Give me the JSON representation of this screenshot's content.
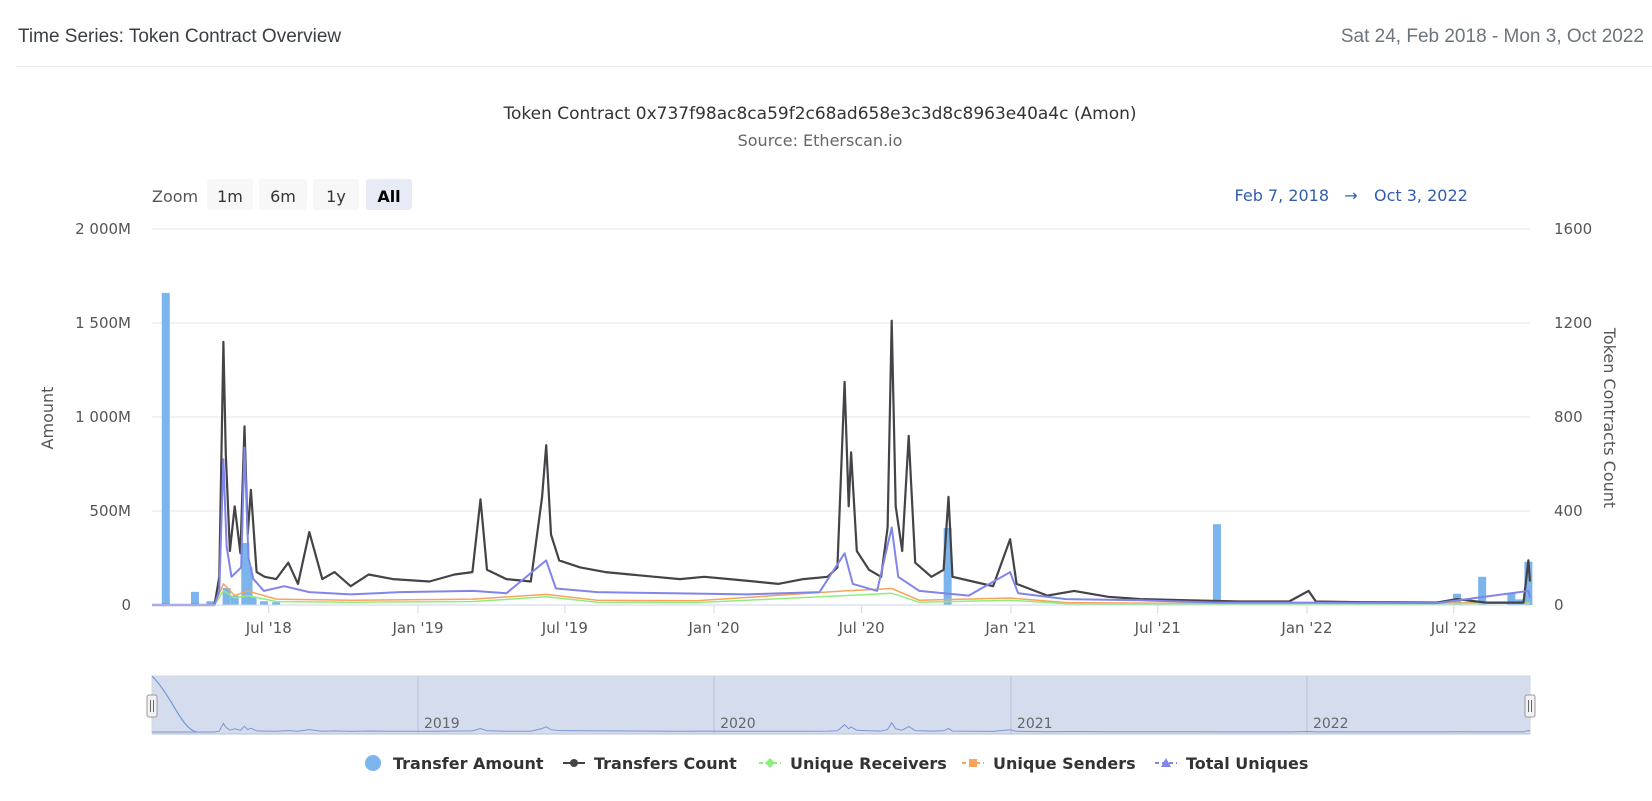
{
  "header": {
    "title": "Time Series: Token Contract Overview",
    "date_range": "Sat 24, Feb 2018 - Mon 3, Oct 2022"
  },
  "toolbar": {
    "zoom_label": "Zoom",
    "buttons": [
      "1m",
      "6m",
      "1y",
      "All"
    ],
    "selected": "All",
    "range_from": "Feb 7, 2018",
    "range_arrow": "→",
    "range_to": "Oct 3, 2022"
  },
  "navigator": {
    "labels": [
      "2019",
      "2020",
      "2021",
      "2022"
    ]
  },
  "colors": {
    "transfer_amount": "#7cb5ec",
    "transfers_count": "#434348",
    "unique_receivers": "#90ed7d",
    "unique_senders": "#f7a35c",
    "total_uniques": "#8085e9",
    "grid": "#e6e6e6",
    "navigator_fill": "#ccd6eb",
    "range_text": "#335cad"
  },
  "chart_data": {
    "type": "line",
    "title": "Token Contract 0x737f98ac8ca59f2c68ad658e3c3d8c8963e40a4c (Amon)",
    "subtitle": "Source: Etherscan.io",
    "xlabel": "",
    "x_range": [
      "2018-02-07",
      "2022-10-03"
    ],
    "x_ticks": [
      "Jul '18",
      "Jan '19",
      "Jul '19",
      "Jan '20",
      "Jul '20",
      "Jan '21",
      "Jul '21",
      "Jan '22",
      "Jul '22"
    ],
    "x_tick_dates": [
      "2018-07-01",
      "2019-01-01",
      "2019-07-01",
      "2020-01-01",
      "2020-07-01",
      "2021-01-01",
      "2021-07-01",
      "2022-01-01",
      "2022-07-01"
    ],
    "y_left": {
      "label": "Amount",
      "range": [
        0,
        2000000000
      ],
      "ticks": [
        "0",
        "500M",
        "1 000M",
        "1 500M",
        "2 000M"
      ]
    },
    "y_right": {
      "label": "Token Contracts Count",
      "range": [
        0,
        1600
      ],
      "ticks": [
        "0",
        "400",
        "800",
        "1200",
        "1600"
      ]
    },
    "grid": true,
    "legend_position": "bottom",
    "series": [
      {
        "name": "Transfer Amount",
        "type": "column",
        "axis": "left",
        "points": [
          [
            "2018-02-24",
            1660000000
          ],
          [
            "2018-04-01",
            70000000
          ],
          [
            "2018-04-20",
            20000000
          ],
          [
            "2018-05-10",
            90000000
          ],
          [
            "2018-05-20",
            50000000
          ],
          [
            "2018-06-02",
            330000000
          ],
          [
            "2018-06-06",
            200000000
          ],
          [
            "2018-06-11",
            40000000
          ],
          [
            "2018-06-25",
            20000000
          ],
          [
            "2018-07-10",
            15000000
          ],
          [
            "2020-10-15",
            410000000
          ],
          [
            "2021-09-12",
            430000000
          ],
          [
            "2022-07-05",
            60000000
          ],
          [
            "2022-08-05",
            150000000
          ],
          [
            "2022-09-10",
            60000000
          ],
          [
            "2022-09-20",
            30000000
          ],
          [
            "2022-10-01",
            230000000
          ]
        ]
      },
      {
        "name": "Transfers Count",
        "type": "line",
        "axis": "right",
        "points": [
          [
            "2018-02-07",
            0
          ],
          [
            "2018-04-25",
            0
          ],
          [
            "2018-05-01",
            120
          ],
          [
            "2018-05-06",
            1120
          ],
          [
            "2018-05-09",
            640
          ],
          [
            "2018-05-14",
            230
          ],
          [
            "2018-05-20",
            420
          ],
          [
            "2018-05-27",
            220
          ],
          [
            "2018-06-01",
            760
          ],
          [
            "2018-06-05",
            300
          ],
          [
            "2018-06-09",
            490
          ],
          [
            "2018-06-16",
            140
          ],
          [
            "2018-06-26",
            120
          ],
          [
            "2018-07-10",
            110
          ],
          [
            "2018-07-25",
            180
          ],
          [
            "2018-08-06",
            90
          ],
          [
            "2018-08-20",
            310
          ],
          [
            "2018-09-05",
            110
          ],
          [
            "2018-09-20",
            140
          ],
          [
            "2018-10-10",
            80
          ],
          [
            "2018-11-01",
            130
          ],
          [
            "2018-12-01",
            110
          ],
          [
            "2019-01-15",
            100
          ],
          [
            "2019-02-15",
            130
          ],
          [
            "2019-03-09",
            140
          ],
          [
            "2019-03-19",
            450
          ],
          [
            "2019-03-27",
            150
          ],
          [
            "2019-04-20",
            110
          ],
          [
            "2019-05-20",
            100
          ],
          [
            "2019-06-03",
            460
          ],
          [
            "2019-06-08",
            680
          ],
          [
            "2019-06-14",
            300
          ],
          [
            "2019-06-24",
            190
          ],
          [
            "2019-07-20",
            160
          ],
          [
            "2019-08-20",
            140
          ],
          [
            "2019-09-20",
            130
          ],
          [
            "2019-10-20",
            120
          ],
          [
            "2019-11-20",
            110
          ],
          [
            "2019-12-20",
            120
          ],
          [
            "2020-01-20",
            110
          ],
          [
            "2020-02-20",
            100
          ],
          [
            "2020-03-20",
            90
          ],
          [
            "2020-04-20",
            110
          ],
          [
            "2020-05-20",
            120
          ],
          [
            "2020-06-01",
            160
          ],
          [
            "2020-06-10",
            950
          ],
          [
            "2020-06-15",
            420
          ],
          [
            "2020-06-18",
            650
          ],
          [
            "2020-06-25",
            230
          ],
          [
            "2020-07-10",
            150
          ],
          [
            "2020-07-25",
            120
          ],
          [
            "2020-08-02",
            330
          ],
          [
            "2020-08-07",
            1210
          ],
          [
            "2020-08-12",
            420
          ],
          [
            "2020-08-20",
            230
          ],
          [
            "2020-08-28",
            720
          ],
          [
            "2020-09-05",
            180
          ],
          [
            "2020-09-25",
            120
          ],
          [
            "2020-10-10",
            150
          ],
          [
            "2020-10-16",
            460
          ],
          [
            "2020-10-21",
            120
          ],
          [
            "2020-11-15",
            100
          ],
          [
            "2020-12-10",
            80
          ],
          [
            "2020-12-31",
            280
          ],
          [
            "2021-01-08",
            90
          ],
          [
            "2021-02-15",
            40
          ],
          [
            "2021-03-20",
            60
          ],
          [
            "2021-05-01",
            35
          ],
          [
            "2021-06-10",
            25
          ],
          [
            "2021-08-10",
            20
          ],
          [
            "2021-10-10",
            15
          ],
          [
            "2021-12-10",
            15
          ],
          [
            "2022-01-03",
            60
          ],
          [
            "2022-01-12",
            15
          ],
          [
            "2022-03-10",
            12
          ],
          [
            "2022-06-10",
            10
          ],
          [
            "2022-07-05",
            25
          ],
          [
            "2022-08-10",
            10
          ],
          [
            "2022-09-25",
            10
          ],
          [
            "2022-10-01",
            190
          ],
          [
            "2022-10-03",
            100
          ]
        ]
      },
      {
        "name": "Unique Receivers",
        "type": "line",
        "axis": "right",
        "points": [
          [
            "2018-02-07",
            0
          ],
          [
            "2018-04-25",
            0
          ],
          [
            "2018-05-06",
            60
          ],
          [
            "2018-05-20",
            30
          ],
          [
            "2018-06-05",
            40
          ],
          [
            "2018-07-10",
            15
          ],
          [
            "2018-10-10",
            12
          ],
          [
            "2019-03-10",
            15
          ],
          [
            "2019-06-08",
            35
          ],
          [
            "2019-08-10",
            12
          ],
          [
            "2019-12-10",
            10
          ],
          [
            "2020-06-10",
            40
          ],
          [
            "2020-08-07",
            50
          ],
          [
            "2020-09-10",
            12
          ],
          [
            "2020-12-31",
            20
          ],
          [
            "2021-03-10",
            6
          ],
          [
            "2021-09-10",
            4
          ],
          [
            "2022-03-10",
            3
          ],
          [
            "2022-10-03",
            8
          ]
        ]
      },
      {
        "name": "Unique Senders",
        "type": "line",
        "axis": "right",
        "points": [
          [
            "2018-02-07",
            0
          ],
          [
            "2018-04-25",
            0
          ],
          [
            "2018-05-06",
            90
          ],
          [
            "2018-05-20",
            40
          ],
          [
            "2018-06-05",
            60
          ],
          [
            "2018-07-10",
            25
          ],
          [
            "2018-10-10",
            20
          ],
          [
            "2019-03-10",
            25
          ],
          [
            "2019-06-08",
            45
          ],
          [
            "2019-08-10",
            20
          ],
          [
            "2019-12-10",
            18
          ],
          [
            "2020-06-10",
            60
          ],
          [
            "2020-08-07",
            70
          ],
          [
            "2020-09-10",
            20
          ],
          [
            "2020-12-31",
            30
          ],
          [
            "2021-03-10",
            10
          ],
          [
            "2021-09-10",
            6
          ],
          [
            "2022-03-10",
            5
          ],
          [
            "2022-10-03",
            12
          ]
        ]
      },
      {
        "name": "Total Uniques",
        "type": "line",
        "axis": "right",
        "points": [
          [
            "2018-02-07",
            0
          ],
          [
            "2018-04-25",
            0
          ],
          [
            "2018-05-01",
            60
          ],
          [
            "2018-05-06",
            620
          ],
          [
            "2018-05-10",
            250
          ],
          [
            "2018-05-16",
            120
          ],
          [
            "2018-05-28",
            160
          ],
          [
            "2018-06-01",
            670
          ],
          [
            "2018-06-06",
            200
          ],
          [
            "2018-06-12",
            110
          ],
          [
            "2018-06-25",
            60
          ],
          [
            "2018-07-20",
            80
          ],
          [
            "2018-08-20",
            55
          ],
          [
            "2018-10-10",
            45
          ],
          [
            "2018-12-10",
            55
          ],
          [
            "2019-03-10",
            60
          ],
          [
            "2019-04-20",
            50
          ],
          [
            "2019-06-08",
            190
          ],
          [
            "2019-06-20",
            70
          ],
          [
            "2019-08-10",
            55
          ],
          [
            "2019-11-10",
            50
          ],
          [
            "2020-02-10",
            45
          ],
          [
            "2020-05-10",
            55
          ],
          [
            "2020-06-10",
            220
          ],
          [
            "2020-06-20",
            90
          ],
          [
            "2020-07-20",
            60
          ],
          [
            "2020-08-07",
            330
          ],
          [
            "2020-08-15",
            120
          ],
          [
            "2020-09-10",
            60
          ],
          [
            "2020-11-10",
            40
          ],
          [
            "2020-12-31",
            140
          ],
          [
            "2021-01-10",
            50
          ],
          [
            "2021-03-10",
            25
          ],
          [
            "2021-06-10",
            20
          ],
          [
            "2021-09-10",
            10
          ],
          [
            "2022-01-10",
            10
          ],
          [
            "2022-06-10",
            8
          ],
          [
            "2022-10-01",
            60
          ],
          [
            "2022-10-03",
            30
          ]
        ]
      }
    ]
  }
}
